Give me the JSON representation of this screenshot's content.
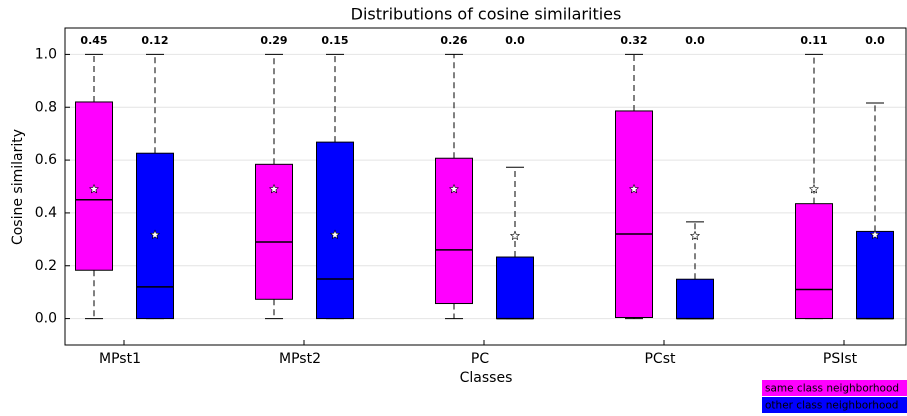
{
  "chart_data": {
    "type": "box",
    "title": "Distributions of cosine similarities",
    "x_label": "Classes",
    "y_label": "Cosine similarity",
    "categories": [
      "MPst1",
      "MPst2",
      "PC",
      "PCst",
      "PSIst"
    ],
    "ylim": [
      -0.1,
      1.1
    ],
    "yticks": [
      {
        "value": 0,
        "label": "0.0"
      },
      0.2,
      0.4,
      0.6,
      0.8,
      {
        "value": 1,
        "label": "1.0"
      }
    ],
    "grid": true,
    "legend_position": "lower right",
    "series": [
      {
        "name": "same class neighborhood",
        "color": "#ff00ff",
        "low": [
          0,
          0,
          0,
          0,
          0
        ],
        "q1": [
          0.183,
          0.073,
          0.057,
          0.004,
          0
        ],
        "median": [
          0.45,
          0.29,
          0.26,
          0.32,
          0.11
        ],
        "median_labels": [
          "0.45",
          "0.29",
          "0.26",
          "0.32",
          "0.11"
        ],
        "q3": [
          0.82,
          0.584,
          0.607,
          0.786,
          0.435
        ],
        "high": [
          1,
          1,
          1,
          1,
          1
        ],
        "mean": [
          0.49,
          0.49,
          0.49,
          0.49,
          0.49
        ]
      },
      {
        "name": "other class neighborhood",
        "color": "#0000ff",
        "low": [
          0,
          0,
          0,
          0,
          0
        ],
        "q1": [
          0,
          0,
          0,
          0,
          0
        ],
        "median": [
          0.12,
          0.15,
          0,
          0,
          0
        ],
        "median_labels": [
          "0.12",
          "0.15",
          "0.0",
          "0.0",
          "0.0"
        ],
        "q3": [
          0.626,
          0.668,
          0.233,
          0.149,
          0.33
        ],
        "high": [
          1,
          1,
          0.573,
          0.366,
          0.816
        ],
        "mean": [
          0.317,
          0.317,
          0.313,
          0.313,
          0.317
        ]
      }
    ]
  }
}
